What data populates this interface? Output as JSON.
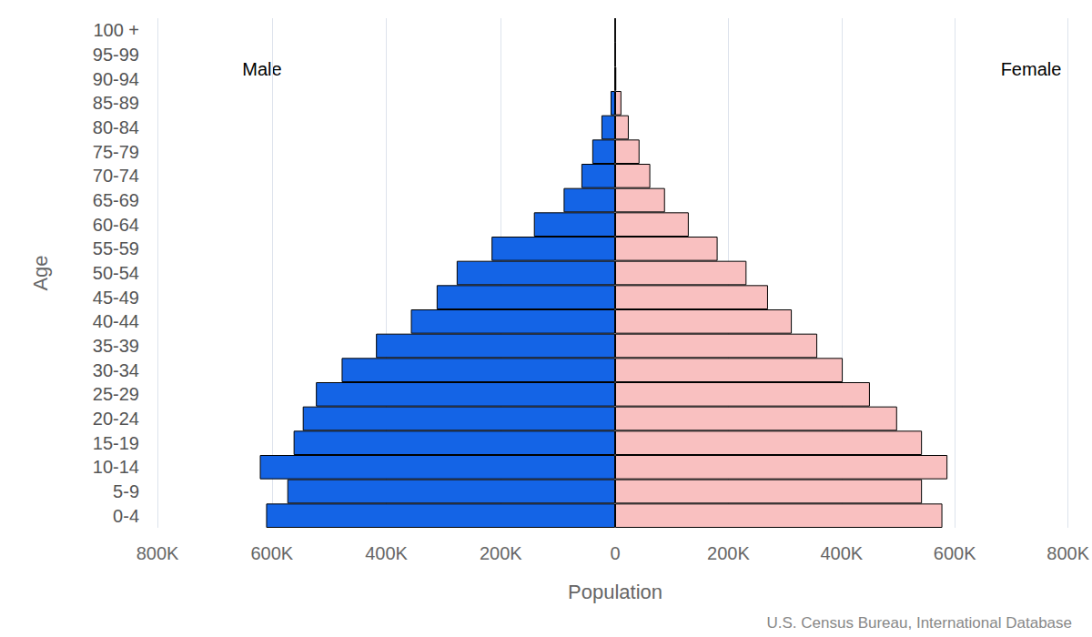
{
  "chart_data": {
    "type": "bar",
    "orientation": "horizontal",
    "x_label": "Population",
    "y_label": "Age",
    "annotations": [
      "U.S. Census Bureau, International Database"
    ],
    "categories": [
      "0-4",
      "5-9",
      "10-14",
      "15-19",
      "20-24",
      "25-29",
      "30-34",
      "35-39",
      "40-44",
      "45-49",
      "50-54",
      "55-59",
      "60-64",
      "65-69",
      "70-74",
      "75-79",
      "80-84",
      "85-89",
      "90-94",
      "95-99",
      "100 +"
    ],
    "series": [
      {
        "name": "Male",
        "color": "#1464e6",
        "values": [
          610000,
          573000,
          621000,
          562000,
          546000,
          523000,
          478000,
          418000,
          357000,
          312000,
          277000,
          216000,
          142000,
          90000,
          59000,
          40000,
          24000,
          8000,
          1000,
          300,
          100
        ]
      },
      {
        "name": "Female",
        "color": "#f9c0c0",
        "values": [
          578000,
          542000,
          587000,
          542000,
          498000,
          450000,
          402000,
          357000,
          312000,
          270000,
          232000,
          181000,
          130000,
          88000,
          62000,
          43000,
          24000,
          11000,
          2000,
          500,
          100
        ]
      }
    ],
    "xlim": [
      0,
      800000
    ],
    "xticks": [
      0,
      {
        "value": 200000,
        "label": "200K"
      },
      {
        "value": 400000,
        "label": "400K"
      },
      {
        "value": 600000,
        "label": "600K"
      },
      {
        "value": 800000,
        "label": "800K"
      }
    ],
    "grid": true
  }
}
